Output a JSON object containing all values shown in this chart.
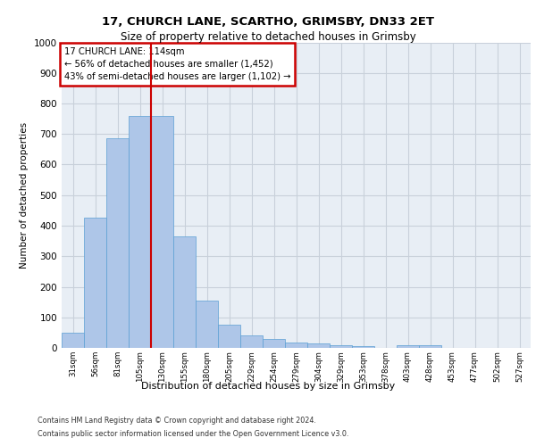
{
  "title_line1": "17, CHURCH LANE, SCARTHO, GRIMSBY, DN33 2ET",
  "title_line2": "Size of property relative to detached houses in Grimsby",
  "xlabel": "Distribution of detached houses by size in Grimsby",
  "ylabel": "Number of detached properties",
  "footnote1": "Contains HM Land Registry data © Crown copyright and database right 2024.",
  "footnote2": "Contains public sector information licensed under the Open Government Licence v3.0.",
  "annotation_line1": "17 CHURCH LANE: 114sqm",
  "annotation_line2": "← 56% of detached houses are smaller (1,452)",
  "annotation_line3": "43% of semi-detached houses are larger (1,102) →",
  "bar_labels": [
    "31sqm",
    "56sqm",
    "81sqm",
    "105sqm",
    "130sqm",
    "155sqm",
    "180sqm",
    "205sqm",
    "229sqm",
    "254sqm",
    "279sqm",
    "304sqm",
    "329sqm",
    "353sqm",
    "378sqm",
    "403sqm",
    "428sqm",
    "453sqm",
    "477sqm",
    "502sqm",
    "527sqm"
  ],
  "bar_values": [
    50,
    425,
    685,
    760,
    760,
    365,
    155,
    75,
    40,
    30,
    18,
    15,
    8,
    5,
    0,
    8,
    8,
    0,
    0,
    0,
    0
  ],
  "bar_color": "#aec6e8",
  "bar_edge_color": "#5a9fd4",
  "vline_x": 3.5,
  "vline_color": "#cc0000",
  "annotation_edge_color": "#cc0000",
  "ylim": [
    0,
    1000
  ],
  "yticks": [
    0,
    100,
    200,
    300,
    400,
    500,
    600,
    700,
    800,
    900,
    1000
  ],
  "grid_color": "#c8d0da",
  "bg_color": "#e8eef5",
  "title1_fontsize": 9.5,
  "title2_fontsize": 8.5,
  "ylabel_fontsize": 7.5,
  "xlabel_fontsize": 8.0,
  "tick_fontsize": 7.5,
  "xtick_fontsize": 6.2,
  "footnote_fontsize": 5.8,
  "annotation_fontsize": 7.2
}
